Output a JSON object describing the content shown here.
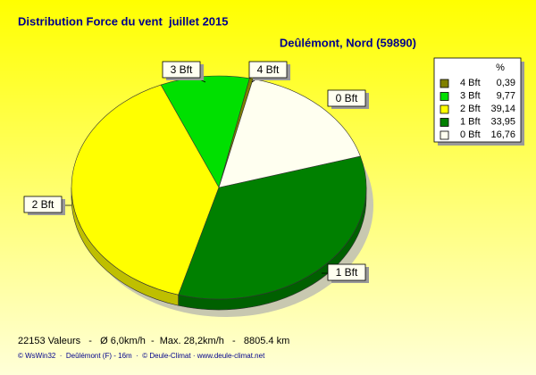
{
  "chart_data": {
    "type": "pie",
    "title": "Distribution Force du vent  juillet 2015",
    "subtitle": "Deûlémont, Nord (59890)",
    "categories": [
      "4 Bft",
      "3 Bft",
      "2 Bft",
      "1 Bft",
      "0 Bft"
    ],
    "values": [
      0.39,
      9.77,
      39.14,
      33.95,
      16.76
    ],
    "value_labels": [
      "0,39",
      "9,77",
      "39,14",
      "33,95",
      "16,76"
    ],
    "colors": [
      "#808000",
      "#00e000",
      "#ffff00",
      "#008000",
      "#fffff0"
    ],
    "legend_header": "%",
    "legend": "top-right",
    "footer": "22153 Valeurs   -   Ø 6,0km/h  -  Max. 28,2km/h   -   8805.4 km",
    "credit": "© WsWin32  ·  Deûlémont (F) - 16m  ·  © Deule-Climat · www.deule-climat.net"
  }
}
